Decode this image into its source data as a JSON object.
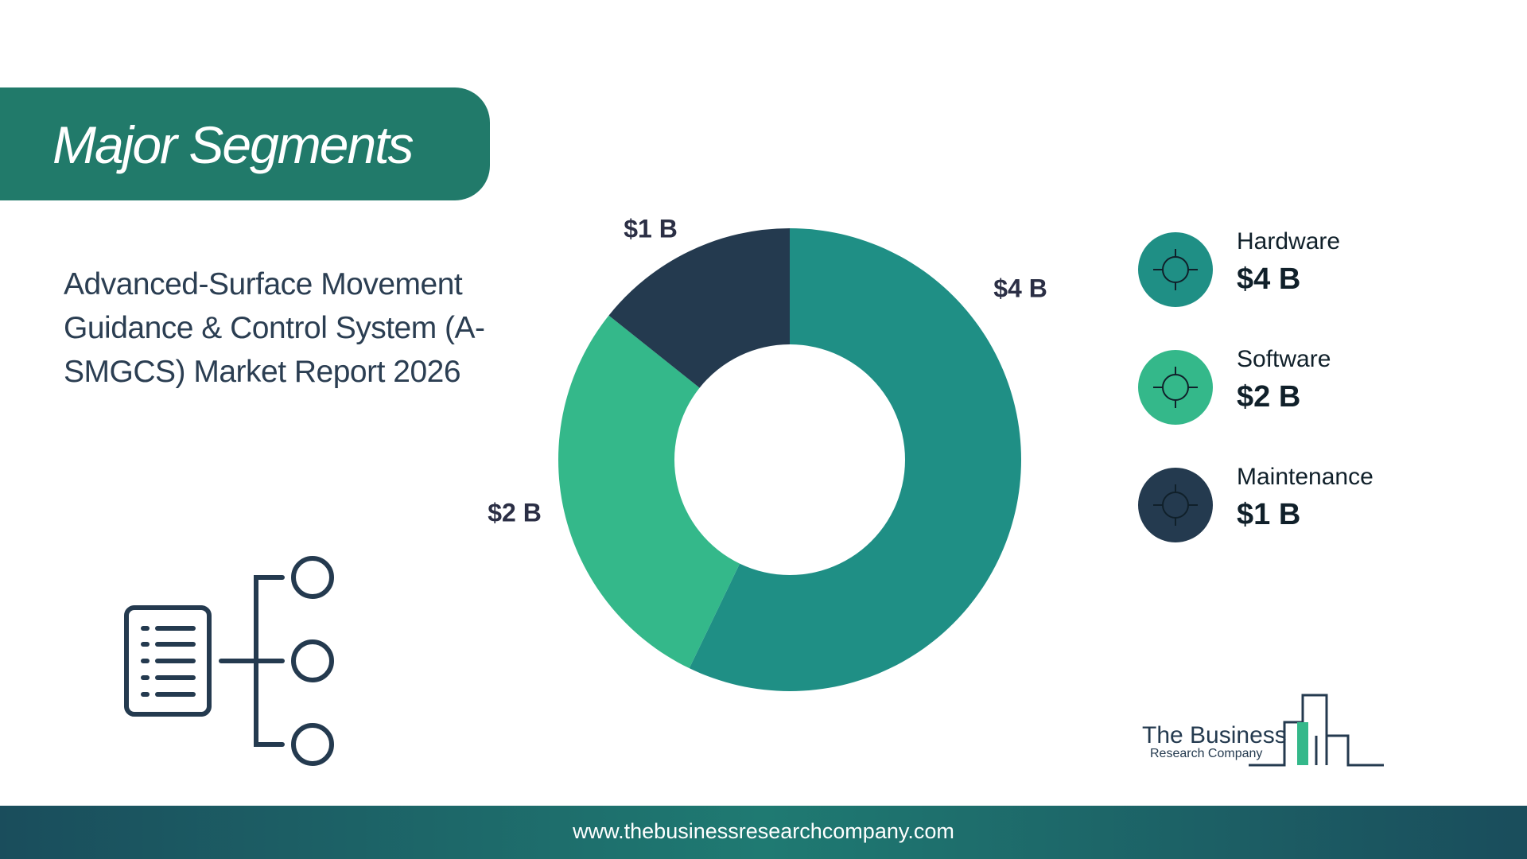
{
  "header": {
    "title": "Major Segments"
  },
  "subtitle": "Advanced-Surface Movement Guidance & Control System (A-SMGCS) Market Report 2026",
  "chart_data": {
    "type": "donut",
    "categories": [
      "Hardware",
      "Software",
      "Maintenance"
    ],
    "values": [
      4,
      2,
      1
    ],
    "value_labels": [
      "$4 B",
      "$2 B",
      "$1 B"
    ],
    "colors": [
      "#1f8f85",
      "#34b88a",
      "#243a4f"
    ]
  },
  "logo": {
    "line1": "The Business",
    "line2": "Research Company"
  },
  "footer": {
    "url": "www.thebusinessresearchcompany.com"
  }
}
